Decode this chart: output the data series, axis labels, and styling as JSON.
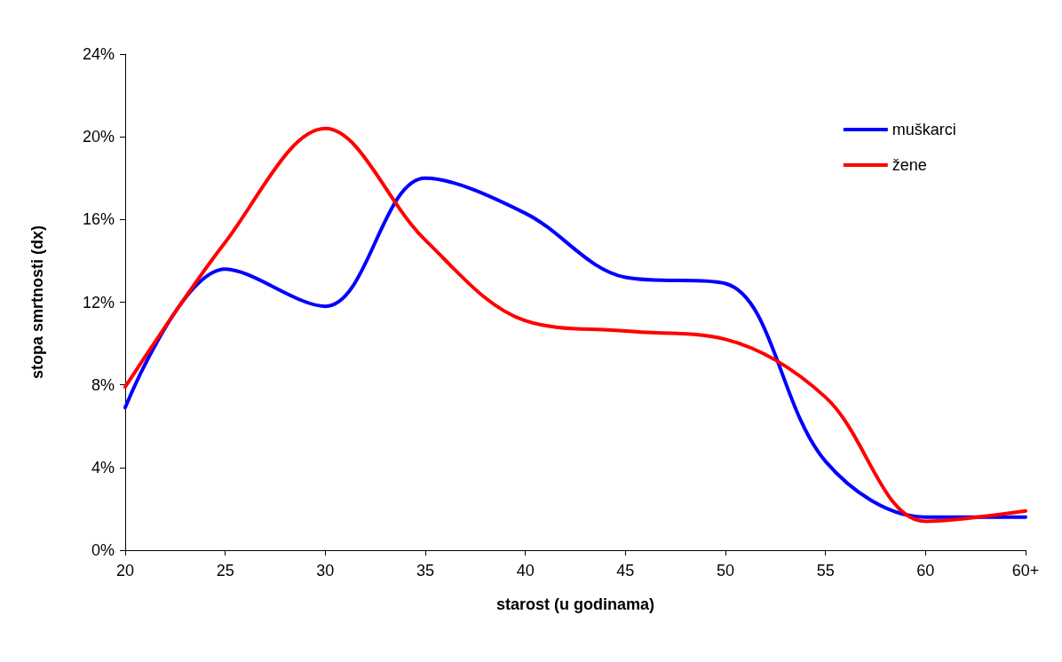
{
  "chart_data": {
    "type": "line",
    "xlabel": "starost (u godinama)",
    "ylabel": "stopa smrtnosti (dx)",
    "categories": [
      "20",
      "25",
      "30",
      "35",
      "40",
      "45",
      "50",
      "55",
      "60",
      "60+"
    ],
    "series": [
      {
        "name": "muškarci",
        "color": "#0000ff",
        "values": [
          6.9,
          13.6,
          11.8,
          18.0,
          16.3,
          13.2,
          12.9,
          4.3,
          1.6,
          1.6
        ]
      },
      {
        "name": "žene",
        "color": "#ff0000",
        "values": [
          7.9,
          14.9,
          20.4,
          15.0,
          11.1,
          10.6,
          10.2,
          7.4,
          1.4,
          1.9
        ]
      }
    ],
    "ylim": [
      0,
      24
    ],
    "yticks": [
      {
        "value": 0,
        "label": "0%"
      },
      {
        "value": 4,
        "label": "4%"
      },
      {
        "value": 8,
        "label": "8%"
      },
      {
        "value": 12,
        "label": "12%"
      },
      {
        "value": 16,
        "label": "16%"
      },
      {
        "value": 20,
        "label": "20%"
      },
      {
        "value": 24,
        "label": "24%"
      }
    ],
    "grid": false,
    "legend": "top right",
    "marker": "none",
    "line_style": "solid"
  }
}
